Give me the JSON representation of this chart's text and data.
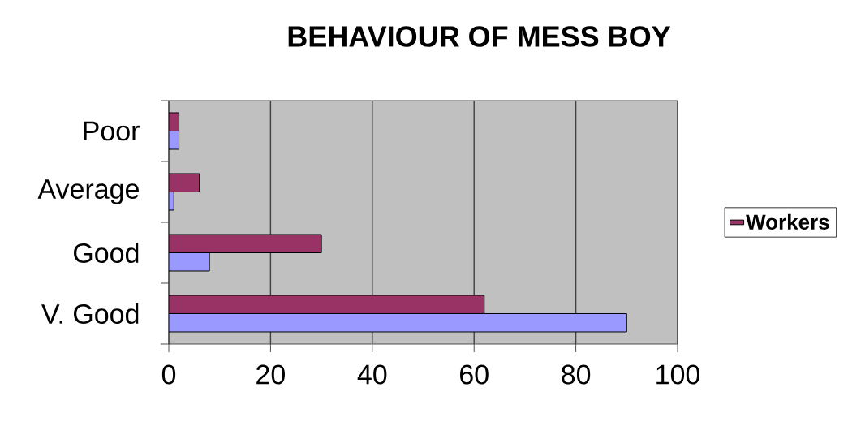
{
  "chart_data": {
    "type": "bar",
    "orientation": "horizontal",
    "title": "BEHAVIOUR OF MESS BOY",
    "categories": [
      "Poor",
      "Average",
      "Good",
      "V. Good"
    ],
    "series": [
      {
        "name": "Workers",
        "color": "#993366",
        "values": [
          2,
          6,
          30,
          62
        ]
      },
      {
        "color": "#9999ff",
        "values": [
          2,
          1,
          8,
          90
        ]
      }
    ],
    "xlim": [
      0,
      100
    ],
    "xticks": [
      0,
      20,
      40,
      60,
      80,
      100
    ],
    "grid": "x",
    "legend": "right"
  }
}
